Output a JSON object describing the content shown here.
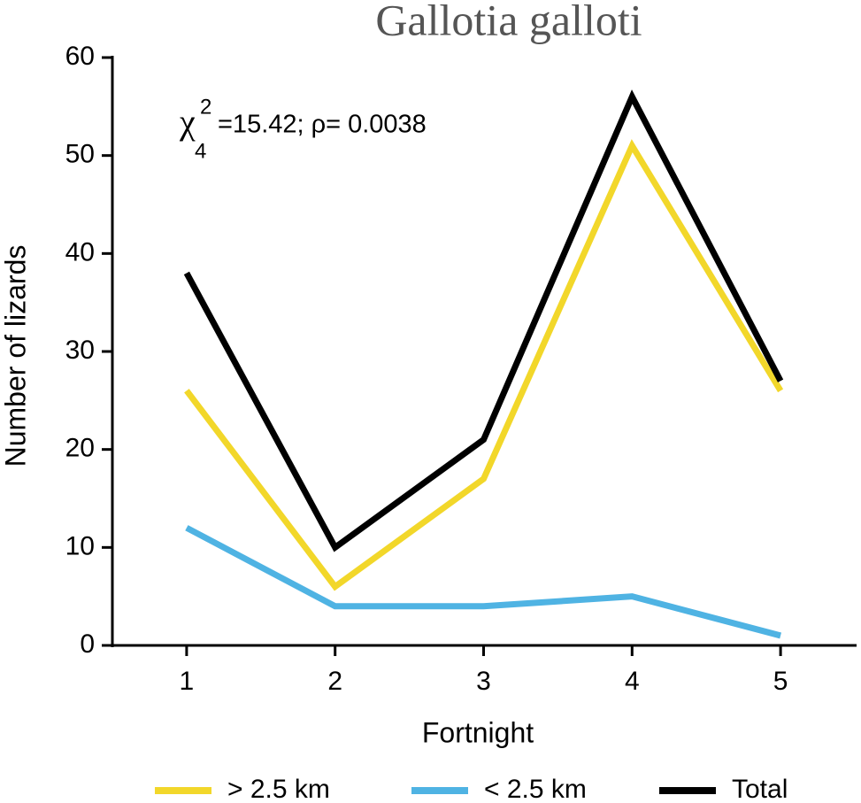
{
  "chart_data": {
    "type": "line",
    "title": "Gallotia galloti",
    "annotation": {
      "symbol": "χ",
      "superscript": "2",
      "subscript": "4",
      "text": "=15.42;  ρ= 0.0038"
    },
    "x_label": "Fortnight",
    "y_label": "Number of lizards",
    "x": [
      1,
      2,
      3,
      4,
      5
    ],
    "series": [
      {
        "name": "> 2.5 km",
        "color": "#f2d72a",
        "values": [
          26,
          6,
          17,
          51,
          26
        ]
      },
      {
        "name": "< 2.5 km",
        "color": "#4fb3e3",
        "values": [
          12,
          4,
          4,
          5,
          1
        ]
      },
      {
        "name": "Total",
        "color": "#000000",
        "values": [
          38,
          10,
          21,
          56,
          27
        ]
      }
    ],
    "xlim": [
      0.5,
      5.5
    ],
    "xticks": [
      1,
      2,
      3,
      4,
      5
    ],
    "ylim": [
      0,
      60
    ],
    "yticks": [
      0,
      10,
      20,
      30,
      40,
      50,
      60
    ],
    "grid": false,
    "legend": "bottom"
  }
}
